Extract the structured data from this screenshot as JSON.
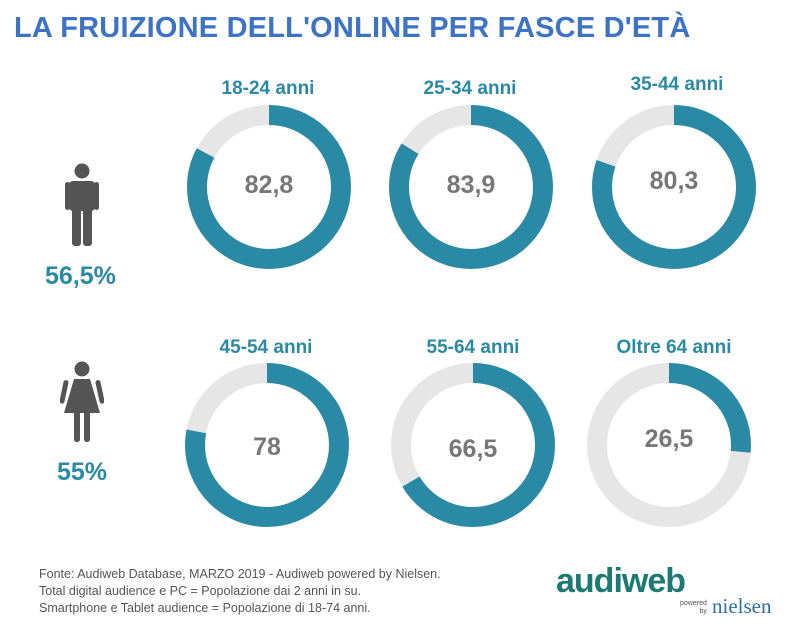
{
  "title": "LA FRUIZIONE DELL'ONLINE PER FASCE D'ETÀ",
  "colors": {
    "accent": "#2a8aa5",
    "track": "#e6e6e6",
    "value_text": "#777777",
    "title": "#3d73c4",
    "icon": "#555555"
  },
  "groups": [
    {
      "icon": "male-person-icon",
      "percentage": "56,5%"
    },
    {
      "icon": "female-person-icon",
      "percentage": "55%"
    }
  ],
  "chart_data": {
    "type": "pie",
    "max": 100,
    "items": [
      {
        "label": "18-24 anni",
        "value": 82.8,
        "display": "82,8"
      },
      {
        "label": "25-34 anni",
        "value": 83.9,
        "display": "83,9"
      },
      {
        "label": "35-44 anni",
        "value": 80.3,
        "display": "80,3"
      },
      {
        "label": "45-54 anni",
        "value": 78,
        "display": "78"
      },
      {
        "label": "55-64 anni",
        "value": 66.5,
        "display": "66,5"
      },
      {
        "label": "Oltre 64 anni",
        "value": 26.5,
        "display": "26,5"
      }
    ]
  },
  "footer": {
    "line1": "Fonte: Audiweb Database, MARZO 2019 - Audiweb powered by Nielsen.",
    "line2": "Total digital audience e PC = Popolazione dai 2 anni in su.",
    "line3": "Smartphone e Tablet audience = Popolazione di 18-74 anni."
  },
  "logo": {
    "brand": "audiweb",
    "powered": "powered",
    "by": "by",
    "partner": "nielsen"
  }
}
